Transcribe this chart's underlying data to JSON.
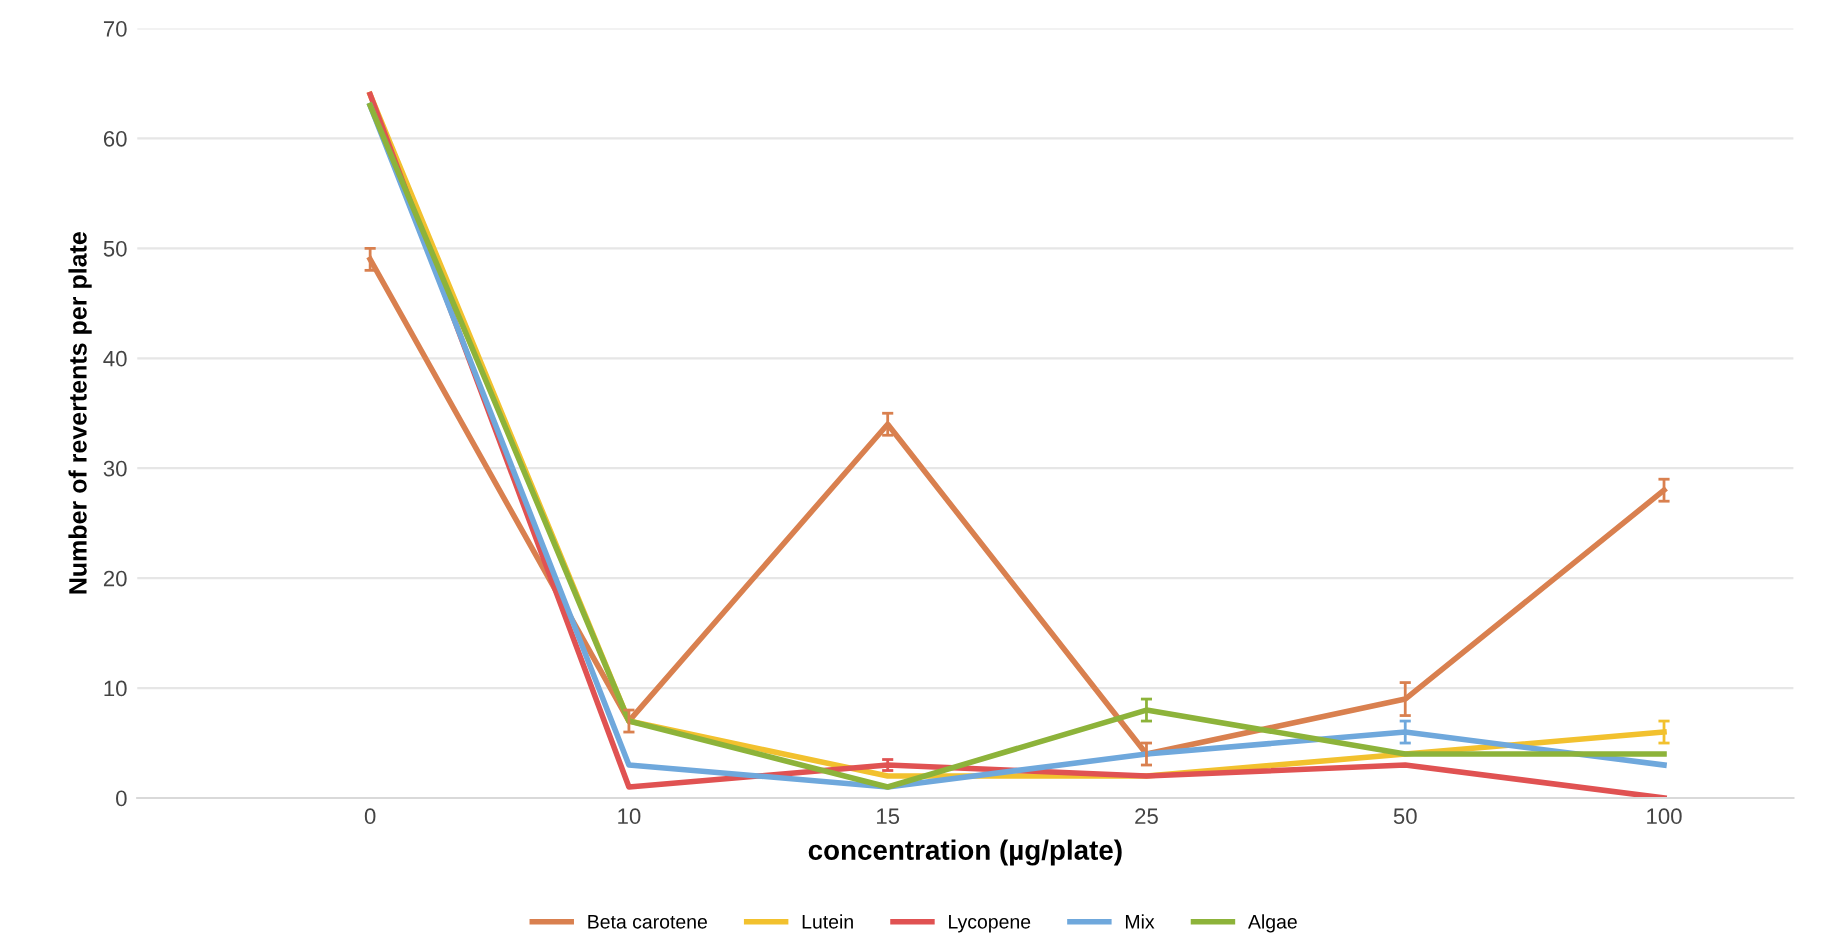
{
  "chart_data": {
    "type": "line",
    "xlabel": "concentration (µg/plate)",
    "ylabel": "Number of revertents per plate",
    "categories": [
      "0",
      "10",
      "15",
      "25",
      "50",
      "100"
    ],
    "series": [
      {
        "name": "Beta carotene",
        "color": "#d9804f",
        "values": [
          49,
          7,
          34,
          4,
          9,
          28
        ],
        "errors": [
          1,
          1,
          1,
          1,
          1.5,
          1
        ]
      },
      {
        "name": "Lutein",
        "color": "#f2c12e",
        "values": [
          64,
          7,
          2,
          2,
          4,
          6
        ],
        "errors": [
          null,
          null,
          null,
          null,
          null,
          1
        ]
      },
      {
        "name": "Lycopene",
        "color": "#e05252",
        "values": [
          64,
          1,
          3,
          2,
          3,
          0
        ],
        "errors": [
          null,
          null,
          0.5,
          null,
          null,
          null
        ]
      },
      {
        "name": "Mix",
        "color": "#6fa8dc",
        "values": [
          63,
          3,
          1,
          4,
          6,
          3
        ],
        "errors": [
          null,
          null,
          null,
          null,
          1,
          null
        ]
      },
      {
        "name": "Algae",
        "color": "#8db33a",
        "values": [
          63,
          7,
          1,
          8,
          4,
          4
        ],
        "errors": [
          null,
          null,
          null,
          1,
          null,
          null
        ]
      }
    ],
    "ylim": [
      0,
      70
    ],
    "yticks": [
      0,
      10,
      20,
      30,
      40,
      50,
      60,
      70
    ],
    "grid": "y",
    "legend": "bottom",
    "marker": "none",
    "line_style": "solid"
  }
}
